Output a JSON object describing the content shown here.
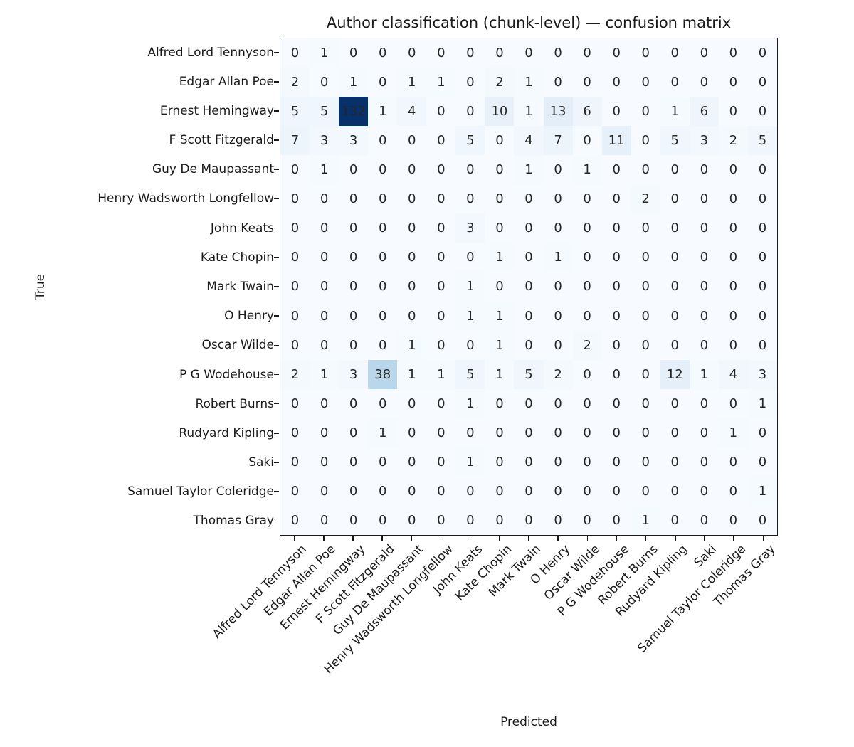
{
  "chart_data": {
    "type": "heatmap",
    "title": "Author classification (chunk-level) — confusion matrix",
    "xlabel": "Predicted",
    "ylabel": "True",
    "x_categories": [
      "Alfred Lord Tennyson",
      "Edgar Allan Poe",
      "Ernest Hemingway",
      "F Scott Fitzgerald",
      "Guy De Maupassant",
      "Henry Wadsworth Longfellow",
      "John Keats",
      "Kate Chopin",
      "Mark Twain",
      "O Henry",
      "Oscar Wilde",
      "P G Wodehouse",
      "Robert Burns",
      "Rudyard Kipling",
      "Saki",
      "Samuel Taylor Coleridge",
      "Thomas Gray"
    ],
    "y_categories": [
      "Alfred Lord Tennyson",
      "Edgar Allan Poe",
      "Ernest Hemingway",
      "F Scott Fitzgerald",
      "Guy De Maupassant",
      "Henry Wadsworth Longfellow",
      "John Keats",
      "Kate Chopin",
      "Mark Twain",
      "O Henry",
      "Oscar Wilde",
      "P G Wodehouse",
      "Robert Burns",
      "Rudyard Kipling",
      "Saki",
      "Samuel Taylor Coleridge",
      "Thomas Gray"
    ],
    "matrix": [
      [
        0,
        1,
        0,
        0,
        0,
        0,
        0,
        0,
        0,
        0,
        0,
        0,
        0,
        0,
        0,
        0,
        0
      ],
      [
        2,
        0,
        1,
        0,
        1,
        1,
        0,
        2,
        1,
        0,
        0,
        0,
        0,
        0,
        0,
        0,
        0
      ],
      [
        5,
        5,
        132,
        1,
        4,
        0,
        0,
        10,
        1,
        13,
        6,
        0,
        0,
        1,
        6,
        0,
        0
      ],
      [
        7,
        3,
        3,
        0,
        0,
        0,
        5,
        0,
        4,
        7,
        0,
        11,
        0,
        5,
        3,
        2,
        5
      ],
      [
        0,
        1,
        0,
        0,
        0,
        0,
        0,
        0,
        1,
        0,
        1,
        0,
        0,
        0,
        0,
        0,
        0
      ],
      [
        0,
        0,
        0,
        0,
        0,
        0,
        0,
        0,
        0,
        0,
        0,
        0,
        2,
        0,
        0,
        0,
        0
      ],
      [
        0,
        0,
        0,
        0,
        0,
        0,
        3,
        0,
        0,
        0,
        0,
        0,
        0,
        0,
        0,
        0,
        0
      ],
      [
        0,
        0,
        0,
        0,
        0,
        0,
        0,
        1,
        0,
        1,
        0,
        0,
        0,
        0,
        0,
        0,
        0
      ],
      [
        0,
        0,
        0,
        0,
        0,
        0,
        1,
        0,
        0,
        0,
        0,
        0,
        0,
        0,
        0,
        0,
        0
      ],
      [
        0,
        0,
        0,
        0,
        0,
        0,
        1,
        1,
        0,
        0,
        0,
        0,
        0,
        0,
        0,
        0,
        0
      ],
      [
        0,
        0,
        0,
        0,
        1,
        0,
        0,
        1,
        0,
        0,
        2,
        0,
        0,
        0,
        0,
        0,
        0
      ],
      [
        2,
        1,
        3,
        38,
        1,
        1,
        5,
        1,
        5,
        2,
        0,
        0,
        0,
        12,
        1,
        4,
        3
      ],
      [
        0,
        0,
        0,
        0,
        0,
        0,
        1,
        0,
        0,
        0,
        0,
        0,
        0,
        0,
        0,
        0,
        1
      ],
      [
        0,
        0,
        0,
        1,
        0,
        0,
        0,
        0,
        0,
        0,
        0,
        0,
        0,
        0,
        0,
        1,
        0
      ],
      [
        0,
        0,
        0,
        0,
        0,
        0,
        1,
        0,
        0,
        0,
        0,
        0,
        0,
        0,
        0,
        0,
        0
      ],
      [
        0,
        0,
        0,
        0,
        0,
        0,
        0,
        0,
        0,
        0,
        0,
        0,
        0,
        0,
        0,
        0,
        1
      ],
      [
        0,
        0,
        0,
        0,
        0,
        0,
        0,
        0,
        0,
        0,
        0,
        0,
        1,
        0,
        0,
        0,
        0
      ]
    ],
    "vmin": 0,
    "vmax": 132,
    "colormap": "Blues",
    "colormap_stops": [
      "#f7fbff",
      "#deebf7",
      "#c6dbef",
      "#9ecae1",
      "#6baed6",
      "#4292c6",
      "#2171b5",
      "#08519c",
      "#08306b"
    ],
    "annotation_color": "#262626",
    "axis_color": "#1a1a1a",
    "grid": false,
    "legend": "none",
    "x_tick_rotation": 45
  }
}
